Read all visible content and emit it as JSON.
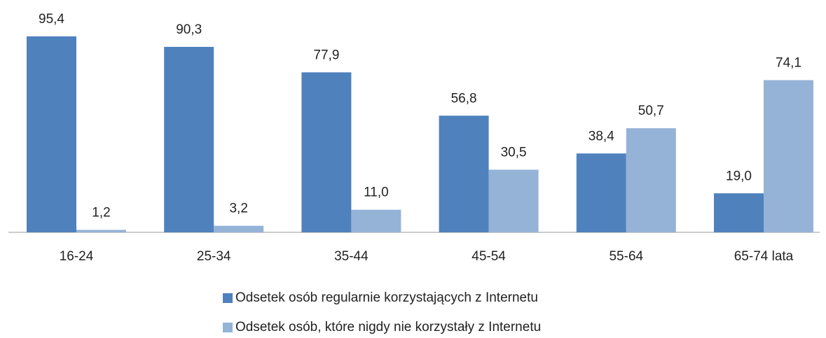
{
  "chart_data": {
    "type": "bar",
    "categories": [
      "16-24",
      "25-34",
      "35-44",
      "45-54",
      "55-64",
      "65-74 lata"
    ],
    "series": [
      {
        "name": "Odsetek osób regularnie korzystających z Internetu",
        "color": "#4f81bd",
        "values": [
          95.4,
          90.3,
          77.9,
          56.8,
          38.4,
          19.0
        ],
        "value_labels": [
          "95,4",
          "90,3",
          "77,9",
          "56,8",
          "38,4",
          "19,0"
        ]
      },
      {
        "name": "Odsetek osób, które nigdy nie korzystały z Internetu",
        "color": "#95b3d7",
        "values": [
          1.2,
          3.2,
          11.0,
          30.5,
          50.7,
          74.1
        ],
        "value_labels": [
          "1,2",
          "3,2",
          "11,0",
          "30,5",
          "50,7",
          "74,1"
        ]
      }
    ]
  }
}
